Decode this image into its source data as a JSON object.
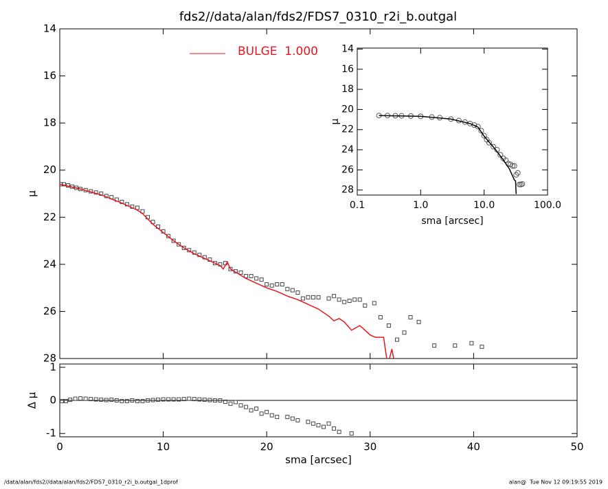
{
  "chart_data": [
    {
      "type": "line",
      "title": "fds2//data/alan/fds2/FDS7_0310_r2i_b.outgal",
      "ylabel": "μ",
      "xlim": [
        0,
        50
      ],
      "xticks": [
        0,
        10,
        20,
        30,
        40,
        50
      ],
      "ylim": [
        28,
        14
      ],
      "yticks": [
        14,
        16,
        18,
        20,
        22,
        24,
        26,
        28
      ],
      "series": [
        {
          "style": "markers",
          "marker": "square",
          "color": "#444444",
          "x": [
            0.1,
            0.4,
            0.8,
            1.2,
            1.6,
            2,
            2.5,
            3,
            3.5,
            4,
            4.5,
            5,
            5.5,
            6,
            6.5,
            7,
            7.5,
            8,
            8.5,
            9,
            9.5,
            10,
            10.5,
            11,
            11.5,
            12,
            12.5,
            13,
            13.5,
            14,
            14.5,
            15,
            15.5,
            16,
            16.5,
            17,
            17.5,
            18,
            18.5,
            19,
            19.5,
            20,
            20.5,
            21,
            21.5,
            22,
            22.5,
            23,
            23.5,
            24,
            24.5,
            25,
            26,
            26.5,
            27,
            27.5,
            28,
            28.5,
            29,
            29.5,
            30.4,
            31,
            31.8,
            32.6,
            33.3,
            33.9,
            34.7,
            36.2,
            38.2,
            39.8,
            40.8
          ],
          "values": [
            20.6,
            20.6,
            20.65,
            20.7,
            20.75,
            20.8,
            20.85,
            20.9,
            20.95,
            21.0,
            21.1,
            21.15,
            21.25,
            21.35,
            21.45,
            21.55,
            21.6,
            21.75,
            22.0,
            22.2,
            22.4,
            22.6,
            22.8,
            23.0,
            23.15,
            23.3,
            23.4,
            23.5,
            23.6,
            23.7,
            23.8,
            23.95,
            24.0,
            23.95,
            24.2,
            24.3,
            24.35,
            24.5,
            24.5,
            24.6,
            24.65,
            24.85,
            24.9,
            24.85,
            24.85,
            25.05,
            25.1,
            25.2,
            25.45,
            25.4,
            25.4,
            25.4,
            25.45,
            25.35,
            25.5,
            25.6,
            25.55,
            25.5,
            25.5,
            25.75,
            25.65,
            26.25,
            26.6,
            27.2,
            26.9,
            26.25,
            26.45,
            27.45,
            27.45,
            27.35,
            27.5
          ]
        },
        {
          "style": "line",
          "name": "BULGE  1.000",
          "color": "#e8141e",
          "x": [
            0,
            2,
            4,
            6,
            7.5,
            8,
            9,
            10,
            11,
            12,
            13,
            14,
            15.5,
            15.8,
            16.2,
            16.5,
            18,
            20,
            21,
            22,
            23,
            24,
            25,
            26,
            26.5,
            27,
            27.5,
            28.2,
            29,
            29.5,
            30,
            30.5,
            31.3,
            31.7,
            32.1,
            32.4
          ],
          "values": [
            20.6,
            20.8,
            21.05,
            21.4,
            21.7,
            21.85,
            22.3,
            22.65,
            23.0,
            23.3,
            23.55,
            23.75,
            24.05,
            24.2,
            23.9,
            24.2,
            24.6,
            25.0,
            25.15,
            25.35,
            25.5,
            25.7,
            25.9,
            26.2,
            26.4,
            26.3,
            26.45,
            26.8,
            26.6,
            26.8,
            27.0,
            27.1,
            27.1,
            28.3,
            27.6,
            28.3
          ]
        }
      ]
    },
    {
      "type": "scatter",
      "ylabel": "Δ μ",
      "xlabel": "sma [arcsec]",
      "xlim": [
        0,
        50
      ],
      "xticks": [
        0,
        10,
        20,
        30,
        40,
        50
      ],
      "ylim": [
        -1.1,
        1.1
      ],
      "yticks": [
        -1,
        0,
        1
      ],
      "zero_line": true,
      "series": [
        {
          "style": "markers",
          "marker": "square",
          "color": "#444444",
          "x": [
            0.2,
            0.6,
            1,
            1.5,
            2,
            2.5,
            3,
            3.5,
            4,
            4.5,
            5,
            5.5,
            6,
            6.5,
            7,
            7.5,
            8,
            8.5,
            9,
            9.5,
            10,
            10.5,
            11,
            11.5,
            12,
            12.5,
            13,
            13.5,
            14,
            14.5,
            15,
            15.5,
            16,
            16.5,
            17,
            17.5,
            18,
            18.5,
            19,
            19.5,
            20,
            20.5,
            21,
            22,
            22.5,
            23,
            24,
            24.5,
            25,
            25.5,
            26,
            26.5,
            27,
            28.2
          ],
          "values": [
            -0.02,
            -0.02,
            0.02,
            0.05,
            0.06,
            0.05,
            0.04,
            0.03,
            0.02,
            0.01,
            0.02,
            0.0,
            -0.02,
            -0.02,
            0.0,
            -0.02,
            -0.02,
            0.0,
            0.01,
            0.02,
            0.03,
            0.03,
            0.03,
            0.03,
            0.04,
            0.05,
            0.04,
            0.03,
            0.02,
            0.01,
            0.0,
            0.0,
            -0.04,
            -0.1,
            -0.05,
            -0.15,
            -0.2,
            -0.3,
            -0.25,
            -0.4,
            -0.35,
            -0.45,
            -0.5,
            -0.5,
            -0.55,
            -0.6,
            -0.65,
            -0.7,
            -0.75,
            -0.8,
            -0.7,
            -0.85,
            -0.95,
            -1.0
          ]
        }
      ]
    },
    {
      "type": "line",
      "xlog": true,
      "ylabel": "μ",
      "xlabel": "sma [arcsec]",
      "xlim": [
        0.1,
        100
      ],
      "xticks": [
        {
          "value": 0.1,
          "label": "0.1"
        },
        {
          "value": 1,
          "label": "1.0"
        },
        {
          "value": 10,
          "label": "10.0"
        },
        {
          "value": 100,
          "label": "100.0"
        }
      ],
      "ylim": [
        28.5,
        13.9
      ],
      "yticks": [
        14,
        16,
        18,
        20,
        22,
        24,
        26,
        28
      ],
      "series": [
        {
          "style": "markers",
          "marker": "circle",
          "color": "#555555",
          "x": [
            0.22,
            0.3,
            0.4,
            0.5,
            0.7,
            1,
            1.5,
            2,
            3,
            4,
            5,
            6,
            7,
            8,
            9,
            10,
            11,
            12,
            14,
            16,
            18,
            20,
            22,
            24,
            26,
            28,
            30,
            32,
            34,
            36,
            38,
            40
          ],
          "values": [
            20.6,
            20.6,
            20.62,
            20.63,
            20.65,
            20.68,
            20.75,
            20.82,
            20.95,
            21.1,
            21.25,
            21.4,
            21.55,
            21.7,
            22.1,
            22.6,
            23.0,
            23.3,
            23.7,
            24.0,
            24.5,
            24.85,
            25.05,
            25.4,
            25.45,
            25.6,
            25.6,
            26.5,
            26.3,
            27.45,
            27.45,
            27.4
          ]
        },
        {
          "style": "line",
          "color": "#000000",
          "x": [
            0.22,
            1,
            3,
            6,
            8,
            10,
            15,
            20,
            25,
            30,
            31.3,
            32
          ],
          "values": [
            20.6,
            20.68,
            20.95,
            21.4,
            21.75,
            22.65,
            23.95,
            25.0,
            25.9,
            27.0,
            27.1,
            28.4
          ]
        }
      ]
    }
  ],
  "footer": {
    "left": "/data/alan/fds2//data/alan/fds2/FDS7_0310_r2i_b.outgal_1dprof",
    "right": "alan@  Tue Nov 12 09:19:55 2019"
  }
}
